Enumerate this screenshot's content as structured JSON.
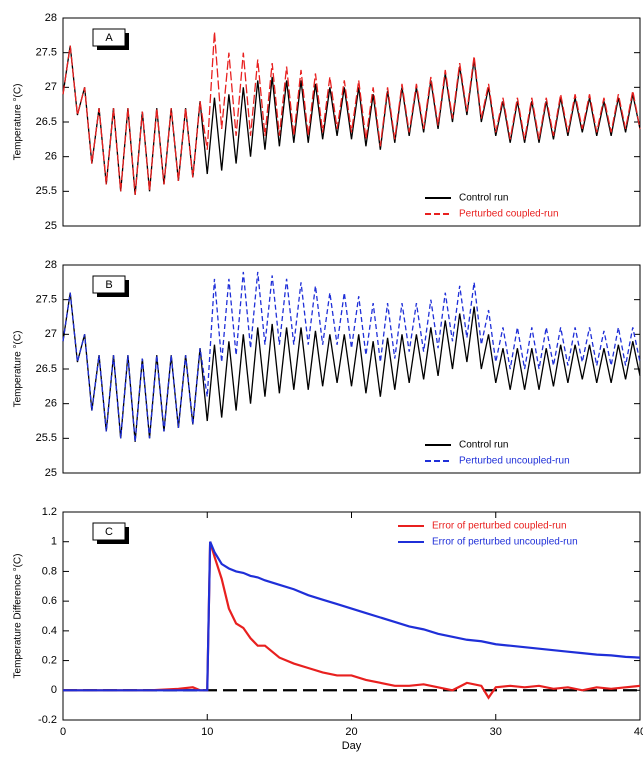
{
  "chart_data": [
    {
      "type": "line",
      "panel_label": "A",
      "ylabel": "Temperature °(C)",
      "xlim": [
        0,
        40
      ],
      "ylim": [
        25,
        28
      ],
      "yticks": [
        25,
        25.5,
        26,
        26.5,
        27,
        27.5,
        28
      ],
      "legend": "lower right",
      "x": [
        0,
        0.5,
        1,
        1.5,
        2,
        2.5,
        3,
        3.5,
        4,
        4.5,
        5,
        5.5,
        6,
        6.5,
        7,
        7.5,
        8,
        8.5,
        9,
        9.5,
        10,
        10.5,
        11,
        11.5,
        12,
        12.5,
        13,
        13.5,
        14,
        14.5,
        15,
        15.5,
        16,
        16.5,
        17,
        17.5,
        18,
        18.5,
        19,
        19.5,
        20,
        20.5,
        21,
        21.5,
        22,
        22.5,
        23,
        23.5,
        24,
        24.5,
        25,
        25.5,
        26,
        26.5,
        27,
        27.5,
        28,
        28.5,
        29,
        29.5,
        30,
        30.5,
        31,
        31.5,
        32,
        32.5,
        33,
        33.5,
        34,
        34.5,
        35,
        35.5,
        36,
        36.5,
        37,
        37.5,
        38,
        38.5,
        39,
        39.5,
        40
      ],
      "series": [
        {
          "name": "Control run",
          "color": "#000000",
          "linestyle": "solid",
          "values": [
            26.9,
            27.6,
            26.6,
            27.0,
            25.9,
            26.7,
            25.6,
            26.7,
            25.5,
            26.7,
            25.45,
            26.65,
            25.5,
            26.7,
            25.6,
            26.7,
            25.65,
            26.7,
            25.7,
            26.8,
            25.75,
            26.85,
            25.8,
            26.9,
            25.9,
            27.0,
            26.0,
            27.1,
            26.1,
            27.15,
            26.15,
            27.1,
            26.2,
            27.1,
            26.2,
            27.05,
            26.25,
            27.0,
            26.3,
            27.0,
            26.25,
            27.0,
            26.15,
            26.9,
            26.1,
            26.95,
            26.2,
            27.0,
            26.3,
            27.0,
            26.35,
            27.1,
            26.4,
            27.2,
            26.5,
            27.3,
            26.6,
            27.4,
            26.5,
            27.0,
            26.3,
            26.8,
            26.2,
            26.8,
            26.2,
            26.8,
            26.2,
            26.8,
            26.25,
            26.85,
            26.3,
            26.85,
            26.35,
            26.85,
            26.3,
            26.8,
            26.3,
            26.85,
            26.35,
            26.9,
            26.4
          ]
        },
        {
          "name": "Perturbed coupled-run",
          "color": "#e8201f",
          "linestyle": "dashed",
          "values": [
            26.9,
            27.6,
            26.6,
            27.0,
            25.9,
            26.7,
            25.6,
            26.7,
            25.5,
            26.7,
            25.45,
            26.65,
            25.5,
            26.7,
            25.6,
            26.7,
            25.65,
            26.7,
            25.7,
            26.8,
            26.1,
            27.8,
            26.4,
            27.5,
            26.3,
            27.5,
            26.3,
            27.4,
            26.3,
            27.35,
            26.3,
            27.3,
            26.3,
            27.25,
            26.3,
            27.2,
            26.35,
            27.15,
            26.4,
            27.1,
            26.35,
            27.1,
            26.25,
            27.0,
            26.15,
            27.0,
            26.25,
            27.05,
            26.35,
            27.05,
            26.4,
            27.15,
            26.45,
            27.25,
            26.55,
            27.35,
            26.65,
            27.45,
            26.55,
            27.05,
            26.35,
            26.85,
            26.25,
            26.85,
            26.25,
            26.85,
            26.25,
            26.85,
            26.3,
            26.9,
            26.35,
            26.9,
            26.4,
            26.9,
            26.35,
            26.85,
            26.35,
            26.9,
            26.4,
            26.95,
            26.4
          ]
        }
      ]
    },
    {
      "type": "line",
      "panel_label": "B",
      "ylabel": "Temperature °(C)",
      "xlim": [
        0,
        40
      ],
      "ylim": [
        25,
        28
      ],
      "yticks": [
        25,
        25.5,
        26,
        26.5,
        27,
        27.5,
        28
      ],
      "legend": "lower right",
      "x": [
        0,
        0.5,
        1,
        1.5,
        2,
        2.5,
        3,
        3.5,
        4,
        4.5,
        5,
        5.5,
        6,
        6.5,
        7,
        7.5,
        8,
        8.5,
        9,
        9.5,
        10,
        10.5,
        11,
        11.5,
        12,
        12.5,
        13,
        13.5,
        14,
        14.5,
        15,
        15.5,
        16,
        16.5,
        17,
        17.5,
        18,
        18.5,
        19,
        19.5,
        20,
        20.5,
        21,
        21.5,
        22,
        22.5,
        23,
        23.5,
        24,
        24.5,
        25,
        25.5,
        26,
        26.5,
        27,
        27.5,
        28,
        28.5,
        29,
        29.5,
        30,
        30.5,
        31,
        31.5,
        32,
        32.5,
        33,
        33.5,
        34,
        34.5,
        35,
        35.5,
        36,
        36.5,
        37,
        37.5,
        38,
        38.5,
        39,
        39.5,
        40
      ],
      "series": [
        {
          "name": "Control run",
          "color": "#000000",
          "linestyle": "solid",
          "values": [
            26.9,
            27.6,
            26.6,
            27.0,
            25.9,
            26.7,
            25.6,
            26.7,
            25.5,
            26.7,
            25.45,
            26.65,
            25.5,
            26.7,
            25.6,
            26.7,
            25.65,
            26.7,
            25.7,
            26.8,
            25.75,
            26.85,
            25.8,
            26.9,
            25.9,
            27.0,
            26.0,
            27.1,
            26.1,
            27.15,
            26.15,
            27.1,
            26.2,
            27.1,
            26.2,
            27.05,
            26.25,
            27.0,
            26.3,
            27.0,
            26.25,
            27.0,
            26.15,
            26.9,
            26.1,
            26.95,
            26.2,
            27.0,
            26.3,
            27.0,
            26.35,
            27.1,
            26.4,
            27.2,
            26.5,
            27.3,
            26.6,
            27.4,
            26.5,
            27.0,
            26.3,
            26.8,
            26.2,
            26.8,
            26.2,
            26.8,
            26.2,
            26.8,
            26.25,
            26.85,
            26.3,
            26.85,
            26.35,
            26.85,
            26.3,
            26.8,
            26.3,
            26.85,
            26.35,
            26.9,
            26.4
          ]
        },
        {
          "name": "Perturbed uncoupled-run",
          "color": "#1f2fd8",
          "linestyle": "dashed",
          "values": [
            26.9,
            27.6,
            26.6,
            27.0,
            25.9,
            26.7,
            25.6,
            26.7,
            25.5,
            26.7,
            25.45,
            26.65,
            25.5,
            26.7,
            25.6,
            26.7,
            25.65,
            26.7,
            25.7,
            26.8,
            26.1,
            27.8,
            26.6,
            27.8,
            26.7,
            27.9,
            26.8,
            27.9,
            26.85,
            27.85,
            26.85,
            27.8,
            26.85,
            27.75,
            26.85,
            27.7,
            26.85,
            27.6,
            26.85,
            27.6,
            26.8,
            27.55,
            26.7,
            27.45,
            26.6,
            27.45,
            26.65,
            27.45,
            26.75,
            27.45,
            26.75,
            27.5,
            26.8,
            27.6,
            26.9,
            27.7,
            26.95,
            27.75,
            26.85,
            27.35,
            26.6,
            27.1,
            26.5,
            27.1,
            26.5,
            27.1,
            26.5,
            27.1,
            26.55,
            27.1,
            26.55,
            27.1,
            26.6,
            27.1,
            26.55,
            27.05,
            26.55,
            27.1,
            26.55,
            27.1,
            26.6
          ]
        }
      ]
    },
    {
      "type": "line",
      "panel_label": "C",
      "ylabel": "Temperature Difference °(C)",
      "xlabel": "Day",
      "xlim": [
        0,
        40
      ],
      "ylim": [
        -0.2,
        1.2
      ],
      "xticks": [
        0,
        10,
        20,
        30,
        40
      ],
      "yticks": [
        -0.2,
        0,
        0.2,
        0.4,
        0.6,
        0.8,
        1,
        1.2
      ],
      "legend": "upper right",
      "hline": 0,
      "x": [
        0,
        2,
        4,
        6,
        8,
        9,
        9.5,
        10,
        10.2,
        10.5,
        11,
        11.5,
        12,
        12.5,
        13,
        13.5,
        14,
        15,
        16,
        17,
        18,
        19,
        20,
        21,
        22,
        23,
        24,
        25,
        26,
        27,
        28,
        29,
        29.5,
        30,
        31,
        32,
        33,
        34,
        35,
        36,
        37,
        38,
        39,
        40
      ],
      "series": [
        {
          "name": "Error of perturbed coupled-run",
          "color": "#e8201f",
          "linestyle": "solid",
          "values": [
            0,
            0,
            0,
            0,
            0.01,
            0.02,
            0,
            0,
            1.0,
            0.9,
            0.75,
            0.55,
            0.45,
            0.42,
            0.35,
            0.3,
            0.3,
            0.22,
            0.18,
            0.15,
            0.12,
            0.1,
            0.1,
            0.07,
            0.05,
            0.03,
            0.03,
            0.04,
            0.02,
            0.0,
            0.05,
            0.03,
            -0.05,
            0.02,
            0.03,
            0.02,
            0.03,
            0.01,
            0.02,
            0.0,
            0.02,
            0.01,
            0.02,
            0.03
          ]
        },
        {
          "name": "Error of perturbed uncoupled-run",
          "color": "#1f2fd8",
          "linestyle": "solid",
          "values": [
            0,
            0,
            0,
            0,
            0,
            0,
            0,
            0,
            1.0,
            0.93,
            0.85,
            0.82,
            0.8,
            0.79,
            0.77,
            0.76,
            0.74,
            0.71,
            0.68,
            0.64,
            0.61,
            0.58,
            0.55,
            0.52,
            0.49,
            0.46,
            0.43,
            0.41,
            0.38,
            0.36,
            0.34,
            0.33,
            0.32,
            0.31,
            0.3,
            0.29,
            0.28,
            0.27,
            0.26,
            0.25,
            0.24,
            0.235,
            0.225,
            0.22
          ]
        }
      ]
    }
  ]
}
